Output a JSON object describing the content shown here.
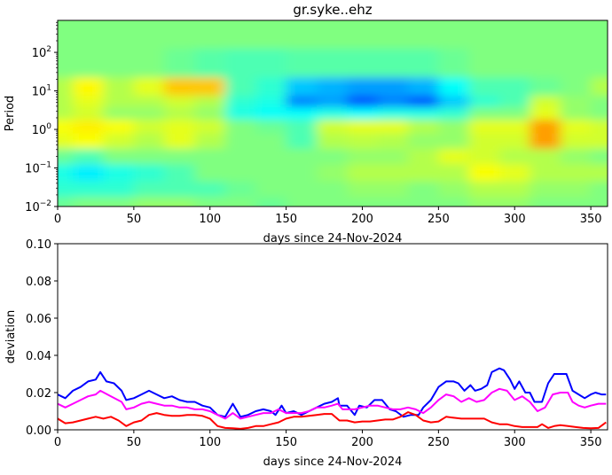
{
  "chart_data": [
    {
      "type": "heatmap",
      "title": "gr.syke..ehz",
      "xlabel": "days since 24-Nov-2024",
      "ylabel": "Period",
      "xlim": [
        0,
        361
      ],
      "ylim": [
        0.01,
        676
      ],
      "yscale": "log",
      "colormap": "jet",
      "xticks": [
        0,
        50,
        100,
        150,
        200,
        250,
        300,
        350
      ],
      "yticks": [
        {
          "value": 0.01,
          "base": "10",
          "exp": "−2"
        },
        {
          "value": 0.1,
          "base": "10",
          "exp": "−1"
        },
        {
          "value": 1,
          "base": "10",
          "exp": "0"
        },
        {
          "value": 10,
          "base": "10",
          "exp": "1"
        },
        {
          "value": 100,
          "base": "10",
          "exp": "2"
        }
      ],
      "x": [
        0,
        20,
        40,
        60,
        80,
        100,
        120,
        140,
        160,
        180,
        200,
        220,
        240,
        260,
        280,
        300,
        320,
        340,
        360
      ],
      "log10_period": [
        2.5,
        1.7,
        1.0,
        0.75,
        0.4,
        0.1,
        -0.3,
        -0.7,
        -1.1,
        -1.6,
        -1.9
      ],
      "values": [
        [
          0.5,
          0.5,
          0.5,
          0.5,
          0.5,
          0.5,
          0.5,
          0.5,
          0.5,
          0.5,
          0.5,
          0.5,
          0.5,
          0.5,
          0.5,
          0.5,
          0.5,
          0.5,
          0.5
        ],
        [
          0.5,
          0.5,
          0.5,
          0.5,
          0.48,
          0.46,
          0.45,
          0.45,
          0.46,
          0.46,
          0.46,
          0.46,
          0.46,
          0.48,
          0.5,
          0.5,
          0.5,
          0.5,
          0.5
        ],
        [
          0.55,
          0.63,
          0.55,
          0.6,
          0.68,
          0.68,
          0.45,
          0.42,
          0.32,
          0.3,
          0.28,
          0.28,
          0.3,
          0.38,
          0.45,
          0.45,
          0.48,
          0.5,
          0.55
        ],
        [
          0.55,
          0.6,
          0.55,
          0.55,
          0.58,
          0.55,
          0.42,
          0.4,
          0.25,
          0.28,
          0.2,
          0.25,
          0.2,
          0.32,
          0.42,
          0.45,
          0.58,
          0.52,
          0.5
        ],
        [
          0.55,
          0.58,
          0.52,
          0.52,
          0.55,
          0.52,
          0.4,
          0.38,
          0.38,
          0.4,
          0.38,
          0.4,
          0.4,
          0.42,
          0.5,
          0.5,
          0.6,
          0.52,
          0.5
        ],
        [
          0.62,
          0.64,
          0.62,
          0.58,
          0.6,
          0.58,
          0.5,
          0.48,
          0.45,
          0.58,
          0.6,
          0.6,
          0.55,
          0.52,
          0.6,
          0.6,
          0.72,
          0.6,
          0.58
        ],
        [
          0.6,
          0.62,
          0.58,
          0.55,
          0.6,
          0.55,
          0.5,
          0.5,
          0.45,
          0.55,
          0.56,
          0.55,
          0.52,
          0.52,
          0.58,
          0.58,
          0.72,
          0.58,
          0.58
        ],
        [
          0.48,
          0.45,
          0.5,
          0.5,
          0.5,
          0.5,
          0.5,
          0.5,
          0.5,
          0.5,
          0.52,
          0.52,
          0.55,
          0.6,
          0.58,
          0.55,
          0.55,
          0.52,
          0.5
        ],
        [
          0.4,
          0.36,
          0.4,
          0.42,
          0.45,
          0.5,
          0.5,
          0.5,
          0.5,
          0.52,
          0.55,
          0.55,
          0.55,
          0.55,
          0.62,
          0.6,
          0.55,
          0.55,
          0.55
        ],
        [
          0.42,
          0.42,
          0.42,
          0.45,
          0.45,
          0.45,
          0.48,
          0.5,
          0.5,
          0.5,
          0.52,
          0.52,
          0.5,
          0.52,
          0.55,
          0.55,
          0.52,
          0.52,
          0.5
        ],
        [
          0.48,
          0.5,
          0.5,
          0.52,
          0.52,
          0.5,
          0.5,
          0.48,
          0.5,
          0.5,
          0.5,
          0.5,
          0.5,
          0.5,
          0.52,
          0.52,
          0.5,
          0.5,
          0.5
        ]
      ]
    },
    {
      "type": "line",
      "xlabel": "days since 24-Nov-2024",
      "ylabel": "deviation",
      "xlim": [
        0,
        361
      ],
      "ylim": [
        0,
        0.1
      ],
      "xticks": [
        0,
        50,
        100,
        150,
        200,
        250,
        300,
        350
      ],
      "yticks": [
        "0.00",
        "0.02",
        "0.04",
        "0.06",
        "0.08",
        "0.10"
      ],
      "series": [
        {
          "color": "#0000ff",
          "x": [
            0,
            5,
            10,
            15,
            20,
            25,
            28,
            32,
            37,
            42,
            45,
            50,
            55,
            60,
            65,
            70,
            75,
            80,
            85,
            90,
            95,
            100,
            105,
            110,
            115,
            120,
            125,
            130,
            135,
            140,
            143,
            147,
            150,
            155,
            160,
            165,
            170,
            175,
            180,
            184,
            185,
            190,
            195,
            198,
            203,
            208,
            213,
            218,
            222,
            227,
            232,
            237,
            240,
            245,
            250,
            255,
            260,
            263,
            267,
            271,
            274,
            278,
            282,
            285,
            290,
            293,
            297,
            300,
            303,
            307,
            310,
            313,
            318,
            322,
            326,
            330,
            334,
            338,
            342,
            346,
            350,
            353,
            357,
            360
          ],
          "y": [
            0.019,
            0.017,
            0.021,
            0.023,
            0.026,
            0.027,
            0.031,
            0.026,
            0.025,
            0.021,
            0.016,
            0.017,
            0.019,
            0.021,
            0.019,
            0.017,
            0.018,
            0.016,
            0.015,
            0.015,
            0.013,
            0.012,
            0.008,
            0.007,
            0.014,
            0.007,
            0.008,
            0.01,
            0.011,
            0.01,
            0.008,
            0.013,
            0.009,
            0.01,
            0.008,
            0.01,
            0.012,
            0.014,
            0.015,
            0.017,
            0.013,
            0.013,
            0.008,
            0.013,
            0.012,
            0.016,
            0.016,
            0.011,
            0.01,
            0.007,
            0.008,
            0.008,
            0.012,
            0.016,
            0.023,
            0.026,
            0.026,
            0.025,
            0.021,
            0.024,
            0.021,
            0.022,
            0.024,
            0.031,
            0.033,
            0.032,
            0.027,
            0.022,
            0.026,
            0.02,
            0.02,
            0.015,
            0.015,
            0.025,
            0.03,
            0.03,
            0.03,
            0.021,
            0.019,
            0.017,
            0.019,
            0.02,
            0.019,
            0.019
          ]
        },
        {
          "color": "#ff00ff",
          "x": [
            0,
            5,
            10,
            15,
            20,
            25,
            28,
            35,
            42,
            45,
            50,
            55,
            60,
            65,
            70,
            75,
            80,
            85,
            90,
            95,
            100,
            105,
            110,
            115,
            120,
            125,
            130,
            135,
            140,
            145,
            150,
            155,
            160,
            165,
            170,
            175,
            180,
            184,
            187,
            195,
            200,
            205,
            210,
            215,
            220,
            225,
            230,
            235,
            240,
            245,
            250,
            255,
            260,
            265,
            270,
            275,
            280,
            285,
            290,
            295,
            300,
            305,
            310,
            315,
            320,
            325,
            330,
            335,
            338,
            342,
            346,
            350,
            355,
            360
          ],
          "y": [
            0.014,
            0.012,
            0.014,
            0.016,
            0.018,
            0.019,
            0.021,
            0.018,
            0.015,
            0.011,
            0.012,
            0.014,
            0.015,
            0.014,
            0.013,
            0.013,
            0.012,
            0.012,
            0.011,
            0.011,
            0.01,
            0.008,
            0.006,
            0.009,
            0.006,
            0.007,
            0.008,
            0.009,
            0.009,
            0.011,
            0.009,
            0.009,
            0.009,
            0.01,
            0.012,
            0.012,
            0.013,
            0.014,
            0.011,
            0.011,
            0.012,
            0.013,
            0.013,
            0.012,
            0.011,
            0.011,
            0.012,
            0.011,
            0.009,
            0.012,
            0.016,
            0.019,
            0.018,
            0.015,
            0.017,
            0.015,
            0.016,
            0.02,
            0.022,
            0.021,
            0.016,
            0.018,
            0.015,
            0.01,
            0.012,
            0.019,
            0.02,
            0.02,
            0.015,
            0.013,
            0.012,
            0.013,
            0.014,
            0.014
          ]
        },
        {
          "color": "#ff0000",
          "x": [
            0,
            5,
            10,
            15,
            20,
            25,
            30,
            35,
            40,
            45,
            50,
            55,
            60,
            65,
            70,
            75,
            80,
            85,
            90,
            95,
            100,
            105,
            110,
            115,
            120,
            125,
            130,
            135,
            140,
            145,
            150,
            155,
            160,
            165,
            170,
            175,
            180,
            185,
            190,
            195,
            200,
            205,
            210,
            215,
            220,
            225,
            230,
            235,
            240,
            245,
            250,
            255,
            260,
            265,
            270,
            275,
            280,
            285,
            290,
            295,
            300,
            305,
            310,
            315,
            318,
            322,
            326,
            330,
            335,
            340,
            345,
            350,
            355,
            360
          ],
          "y": [
            0.006,
            0.0035,
            0.004,
            0.005,
            0.006,
            0.007,
            0.006,
            0.007,
            0.005,
            0.002,
            0.004,
            0.005,
            0.008,
            0.009,
            0.008,
            0.0075,
            0.0075,
            0.008,
            0.008,
            0.0075,
            0.006,
            0.002,
            0.001,
            0.0008,
            0.0005,
            0.001,
            0.002,
            0.002,
            0.003,
            0.004,
            0.006,
            0.007,
            0.007,
            0.0075,
            0.008,
            0.0085,
            0.0085,
            0.005,
            0.005,
            0.004,
            0.0045,
            0.0045,
            0.005,
            0.0055,
            0.0055,
            0.007,
            0.0095,
            0.008,
            0.005,
            0.004,
            0.0045,
            0.007,
            0.0065,
            0.006,
            0.006,
            0.006,
            0.006,
            0.004,
            0.003,
            0.003,
            0.002,
            0.0015,
            0.0015,
            0.0015,
            0.003,
            0.001,
            0.002,
            0.0025,
            0.002,
            0.0015,
            0.001,
            0.0008,
            0.001,
            0.004
          ]
        }
      ]
    }
  ]
}
